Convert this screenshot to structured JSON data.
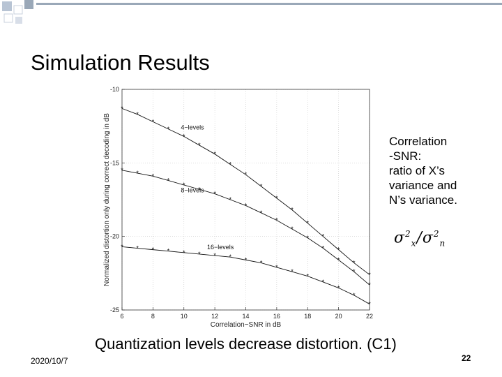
{
  "slide": {
    "title": "Simulation Results",
    "side_text": [
      "Correlation",
      "-SNR:",
      "ratio of X’s",
      "variance and",
      "N’s variance."
    ],
    "formula_icon": "sigma-x-squared-over-sigma-n-squared",
    "caption": "Quantization levels decrease distortion. (C1)",
    "date": "2020/10/7",
    "page_number": "22",
    "accent_color": "#9aa8b8"
  },
  "chart_data": {
    "type": "line",
    "xlabel": "Correlation−SNR in dB",
    "ylabel": "Normalized distortion only during correct decoding in dB",
    "xlim": [
      6,
      22
    ],
    "ylim": [
      -25,
      -10
    ],
    "x_ticks": [
      6,
      8,
      10,
      12,
      14,
      16,
      18,
      20,
      22
    ],
    "y_ticks": [
      -10,
      -15,
      -20,
      -25
    ],
    "grid": true,
    "x": [
      6,
      7,
      8,
      9,
      10,
      11,
      12,
      13,
      14,
      15,
      16,
      17,
      18,
      19,
      20,
      21,
      22
    ],
    "series": [
      {
        "name": "4−levels",
        "values": [
          -11.3,
          -11.7,
          -12.2,
          -12.7,
          -13.2,
          -13.8,
          -14.4,
          -15.1,
          -15.8,
          -16.6,
          -17.4,
          -18.2,
          -19.1,
          -20.0,
          -20.9,
          -21.8,
          -22.6
        ]
      },
      {
        "name": "8−levels",
        "values": [
          -15.5,
          -15.7,
          -15.9,
          -16.2,
          -16.5,
          -16.8,
          -17.1,
          -17.5,
          -17.9,
          -18.4,
          -18.9,
          -19.5,
          -20.1,
          -20.8,
          -21.6,
          -22.4,
          -23.3
        ]
      },
      {
        "name": "16−levels",
        "values": [
          -20.7,
          -20.8,
          -20.9,
          -21.0,
          -21.1,
          -21.2,
          -21.3,
          -21.4,
          -21.6,
          -21.8,
          -22.1,
          -22.4,
          -22.7,
          -23.1,
          -23.5,
          -24.0,
          -24.6
        ]
      }
    ]
  }
}
